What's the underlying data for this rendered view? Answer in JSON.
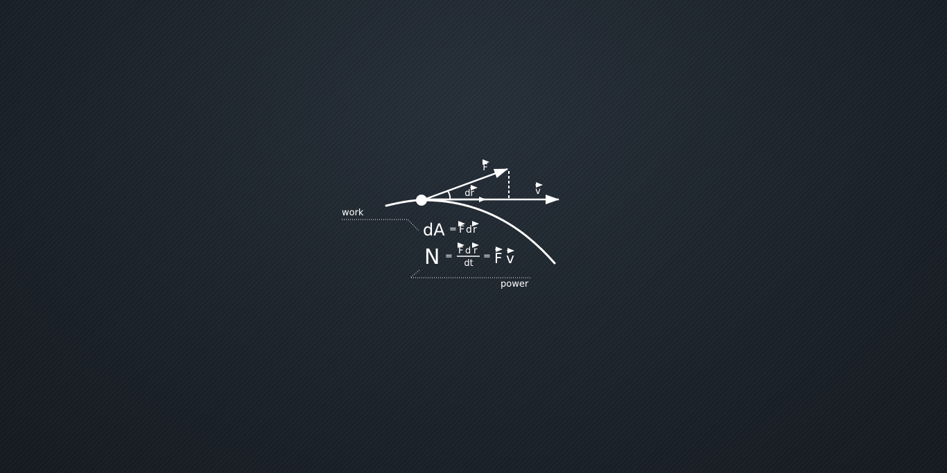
{
  "diagram": {
    "labels": {
      "force": "F",
      "displacement": "dr",
      "velocity": "v",
      "work": "work",
      "power": "power"
    },
    "equations": {
      "work_lhs": "dA",
      "work_eq": "=",
      "work_F": "F",
      "work_d": "d",
      "work_r": "r",
      "power_lhs": "N",
      "power_eq1": "=",
      "power_num_F": "F",
      "power_num_d": "d",
      "power_num_r": "r",
      "power_den": "dt",
      "power_eq2": "=",
      "power_F": "F",
      "power_v": "v"
    },
    "colors": {
      "ink": "#ffffff",
      "background": "#1c232b"
    }
  }
}
